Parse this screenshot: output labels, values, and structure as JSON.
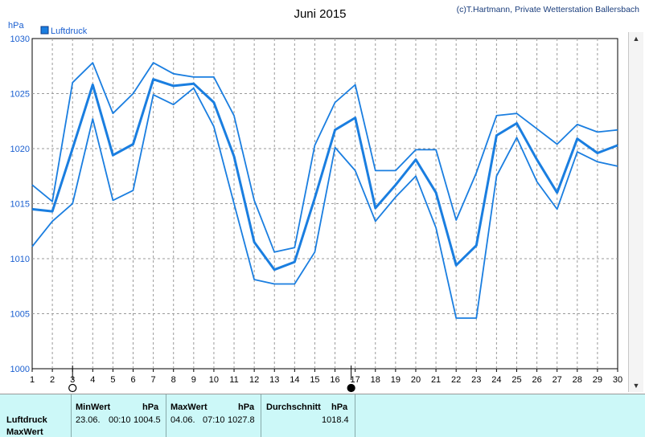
{
  "credit": "(c)T.Hartmann, Private Wetterstation Ballersbach",
  "chart_data": {
    "type": "line",
    "title": "Juni 2015",
    "ylabel": "hPa",
    "ylim": [
      1000,
      1030
    ],
    "yticks": [
      1000,
      1005,
      1010,
      1015,
      1020,
      1025,
      1030
    ],
    "xlim": [
      1,
      30
    ],
    "x": [
      1,
      2,
      3,
      4,
      5,
      6,
      7,
      8,
      9,
      10,
      11,
      12,
      13,
      14,
      15,
      16,
      17,
      18,
      19,
      20,
      21,
      22,
      23,
      24,
      25,
      26,
      27,
      28,
      29,
      30
    ],
    "grid": true,
    "legend": {
      "position": "top-left",
      "entries": [
        "Luftdruck"
      ]
    },
    "series": [
      {
        "name": "Luftdruck",
        "role": "average",
        "values": [
          1014.5,
          1014.3,
          1020.0,
          1025.8,
          1019.4,
          1020.4,
          1026.3,
          1025.7,
          1025.9,
          1024.2,
          1019.3,
          1011.5,
          1009.0,
          1009.7,
          1015.5,
          1021.7,
          1022.8,
          1014.6,
          1016.7,
          1019.0,
          1016.0,
          1009.4,
          1011.2,
          1021.2,
          1022.3,
          1019.0,
          1016.0,
          1020.9,
          1019.6,
          1020.3
        ]
      },
      {
        "role": "max",
        "values": [
          1016.7,
          1015.2,
          1026.0,
          1027.8,
          1023.2,
          1025.0,
          1027.8,
          1026.8,
          1026.5,
          1026.5,
          1023.0,
          1015.3,
          1010.6,
          1011.0,
          1020.3,
          1024.2,
          1025.8,
          1018.0,
          1018.0,
          1019.9,
          1019.9,
          1013.5,
          1017.8,
          1023.0,
          1023.2,
          1021.8,
          1020.4,
          1022.2,
          1021.5,
          1021.7
        ]
      },
      {
        "role": "min",
        "values": [
          1011.1,
          1013.4,
          1015.0,
          1022.7,
          1015.3,
          1016.2,
          1024.9,
          1024.0,
          1025.5,
          1022.0,
          1015.0,
          1008.1,
          1007.7,
          1007.7,
          1010.6,
          1020.1,
          1018.0,
          1013.4,
          1015.6,
          1017.5,
          1012.8,
          1004.6,
          1004.6,
          1017.5,
          1021.0,
          1017.0,
          1014.5,
          1019.7,
          1018.8,
          1018.4
        ]
      }
    ],
    "markers": [
      {
        "day": 3,
        "symbol": "open-circle"
      },
      {
        "day": 16.8,
        "symbol": "filled-circle"
      }
    ],
    "color": "#1a7ee0"
  },
  "table": {
    "row_labels": [
      "Luftdruck",
      "MaxWert"
    ],
    "min": {
      "header": "MinWert",
      "unit": "hPa",
      "date": "23.06.",
      "time": "00:10",
      "value": "1004.5"
    },
    "max": {
      "header": "MaxWert",
      "unit": "hPa",
      "date": "04.06.",
      "time": "07:10",
      "value": "1027.8"
    },
    "avg": {
      "header": "Durchschnitt",
      "unit": "hPa",
      "value": "1018.4"
    }
  }
}
